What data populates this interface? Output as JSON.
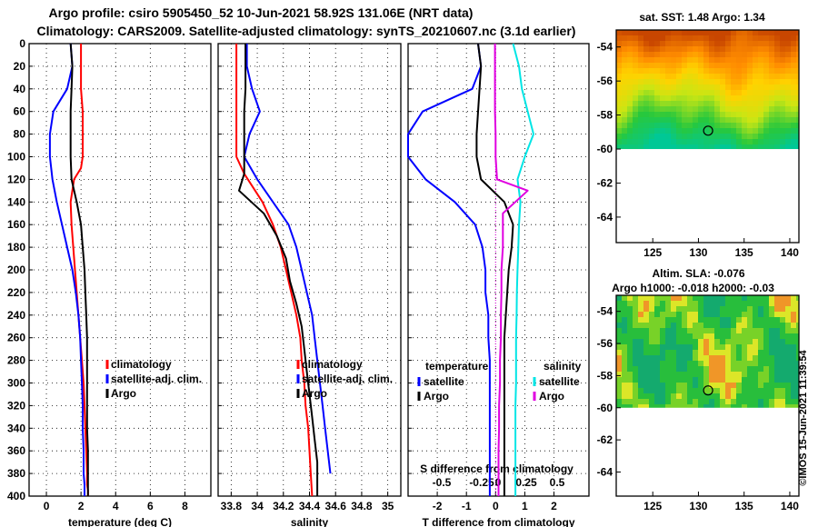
{
  "title_line1": "Argo profile: csiro 5905450_52 10-Jun-2021 58.92S 131.06E (NRT data)",
  "title_line2": "Climatology: CARS2009. Satellite-adjusted climatology: synTS_20210607.nc (3.1d earlier)",
  "credit": "©IMOS 15-Jun-2021 11:39:54",
  "colors": {
    "climatology": "#ff0000",
    "satellite": "#0000ff",
    "argo": "#000000",
    "sat_salinity": "#00e5e5",
    "argo_salinity": "#e000e0",
    "zero_line": "#e000e0"
  },
  "chart_data": [
    {
      "type": "line",
      "id": "temperature",
      "xlabel": "temperature (deg C)",
      "xlim": [
        -1,
        9.5
      ],
      "xticks": [
        0,
        2,
        4,
        6,
        8
      ],
      "xtick_labels": [
        "0",
        "2",
        "4",
        "6",
        "8"
      ],
      "ylim": [
        0,
        400
      ],
      "yticks": [
        0,
        20,
        40,
        60,
        80,
        100,
        120,
        140,
        160,
        180,
        200,
        220,
        240,
        260,
        280,
        300,
        320,
        340,
        360,
        380,
        400
      ],
      "ytick_labels": [
        "0",
        "20",
        "40",
        "60",
        "80",
        "100",
        "120",
        "140",
        "160",
        "180",
        "200",
        "220",
        "240",
        "260",
        "280",
        "300",
        "320",
        "340",
        "360",
        "380",
        "400"
      ],
      "legend": [
        "climatology",
        "satellite-adj. clim.",
        "Argo"
      ],
      "series": [
        {
          "name": "climatology",
          "color": "#ff0000",
          "x": [
            2.0,
            2.0,
            2.0,
            2.1,
            2.1,
            2.1,
            2.0,
            1.6,
            1.4,
            1.45,
            1.55,
            1.65,
            1.75,
            1.85,
            1.95,
            2.05,
            2.15,
            2.2,
            2.25,
            2.3,
            2.35,
            2.35,
            2.4,
            2.4
          ],
          "y": [
            0,
            20,
            40,
            60,
            80,
            100,
            110,
            120,
            140,
            160,
            180,
            200,
            220,
            240,
            260,
            280,
            300,
            320,
            340,
            360,
            380,
            390,
            395,
            400
          ]
        },
        {
          "name": "satellite-adj. clim.",
          "color": "#0000ff",
          "x": [
            1.4,
            1.5,
            1.2,
            0.4,
            0.2,
            0.2,
            0.35,
            0.6,
            0.9,
            1.2,
            1.5,
            1.7,
            1.85,
            1.95,
            2.0,
            2.05,
            2.1,
            2.1,
            2.15,
            2.15,
            2.2,
            2.2
          ],
          "y": [
            0,
            20,
            40,
            60,
            80,
            100,
            120,
            140,
            160,
            180,
            200,
            220,
            240,
            260,
            280,
            300,
            320,
            340,
            360,
            380,
            390,
            400
          ]
        },
        {
          "name": "Argo",
          "color": "#000000",
          "x": [
            1.4,
            1.5,
            1.45,
            1.4,
            1.4,
            1.4,
            1.45,
            1.75,
            2.0,
            2.1,
            2.2,
            2.25,
            2.3,
            2.35,
            2.35,
            2.35,
            2.35,
            2.35,
            2.4,
            2.4,
            2.4,
            2.4
          ],
          "y": [
            0,
            20,
            40,
            60,
            80,
            100,
            120,
            140,
            160,
            180,
            200,
            220,
            240,
            260,
            280,
            300,
            320,
            340,
            360,
            380,
            390,
            400
          ]
        }
      ]
    },
    {
      "type": "line",
      "id": "salinity",
      "xlabel": "salinity",
      "xlim": [
        33.7,
        35.1
      ],
      "xticks": [
        33.8,
        34,
        34.2,
        34.4,
        34.6,
        34.8,
        35
      ],
      "xtick_labels": [
        "33.8",
        "34",
        "34.2",
        "34.4",
        "34.6",
        "34.8",
        "35"
      ],
      "ylim": [
        0,
        400
      ],
      "legend": [
        "climatology",
        "satellite-adj. clim.",
        "Argo"
      ],
      "series": [
        {
          "name": "climatology",
          "color": "#ff0000",
          "x": [
            33.84,
            33.84,
            33.84,
            33.84,
            33.84,
            33.84,
            33.9,
            34.04,
            34.12,
            34.18,
            34.22,
            34.26,
            34.3,
            34.33,
            34.34,
            34.36,
            34.37,
            34.39,
            34.4,
            34.41,
            34.42
          ],
          "y": [
            0,
            20,
            40,
            60,
            80,
            100,
            115,
            140,
            160,
            180,
            200,
            220,
            240,
            260,
            280,
            300,
            320,
            340,
            360,
            380,
            400
          ]
        },
        {
          "name": "satellite-adj. clim.",
          "color": "#0000ff",
          "x": [
            33.92,
            33.92,
            33.96,
            34.02,
            33.94,
            33.9,
            34.0,
            34.12,
            34.24,
            34.3,
            34.34,
            34.38,
            34.42,
            34.44,
            34.46,
            34.48,
            34.5,
            34.52,
            34.54,
            34.56
          ],
          "y": [
            0,
            20,
            40,
            60,
            80,
            100,
            120,
            140,
            160,
            180,
            200,
            220,
            240,
            260,
            280,
            300,
            320,
            340,
            360,
            380
          ]
        },
        {
          "name": "Argo",
          "color": "#000000",
          "x": [
            33.91,
            33.91,
            33.91,
            33.9,
            33.9,
            33.9,
            33.9,
            33.86,
            34.05,
            34.15,
            34.22,
            34.25,
            34.3,
            34.34,
            34.36,
            34.38,
            34.4,
            34.42,
            34.44,
            34.46,
            34.46
          ],
          "y": [
            0,
            20,
            40,
            60,
            80,
            100,
            115,
            130,
            150,
            170,
            190,
            210,
            230,
            250,
            270,
            290,
            310,
            330,
            350,
            370,
            400
          ]
        }
      ]
    },
    {
      "type": "line",
      "id": "difference",
      "xlabel": "T difference from climatology",
      "top_label": "S difference from climatology",
      "xlim": [
        -3,
        3.2
      ],
      "xticks": [
        -2,
        -1,
        0,
        1,
        2
      ],
      "xtick_labels": [
        "-2",
        "-1",
        "0",
        "1",
        "2"
      ],
      "s_ticks": [
        -0.5,
        -0.25,
        0,
        0.25,
        0.5
      ],
      "s_tick_labels": [
        "-0.5",
        "-0.25",
        "0",
        "0.25",
        "0.5"
      ],
      "ylim": [
        0,
        400
      ],
      "legend_left_title": "temperature",
      "legend_right_title": "salinity",
      "legend_left": [
        "satellite",
        "Argo"
      ],
      "legend_right": [
        "satellite",
        "Argo"
      ],
      "series": [
        {
          "name": "temperature satellite",
          "color": "#0000ff",
          "x": [
            -0.6,
            -0.5,
            -0.8,
            -2.5,
            -3.0,
            -3.0,
            -2.4,
            -1.4,
            -0.7,
            -0.45,
            -0.35,
            -0.35,
            -0.25,
            -0.25,
            -0.2,
            -0.2,
            -0.2,
            -0.2,
            -0.2,
            -0.2
          ],
          "y": [
            0,
            20,
            40,
            60,
            80,
            100,
            120,
            140,
            160,
            180,
            200,
            220,
            240,
            260,
            280,
            300,
            320,
            340,
            360,
            400
          ]
        },
        {
          "name": "temperature Argo",
          "color": "#000000",
          "x": [
            -0.6,
            -0.5,
            -0.55,
            -0.6,
            -0.65,
            -0.65,
            -0.5,
            0.3,
            0.6,
            0.55,
            0.45,
            0.4,
            0.35,
            0.3,
            0.3,
            0.3,
            0.3,
            0.3,
            0.3,
            0.3
          ],
          "y": [
            0,
            20,
            40,
            60,
            80,
            100,
            120,
            140,
            160,
            180,
            200,
            220,
            240,
            260,
            280,
            300,
            320,
            340,
            360,
            400
          ]
        },
        {
          "name": "salinity satellite",
          "color": "#00e5e5",
          "x": [
            0.6,
            0.8,
            0.9,
            1.1,
            1.3,
            1.0,
            0.75,
            0.85,
            0.8,
            0.78,
            0.75,
            0.73,
            0.72,
            0.7,
            0.7,
            0.7,
            0.68,
            0.68,
            0.68,
            0.68
          ],
          "y": [
            0,
            20,
            40,
            60,
            80,
            100,
            120,
            140,
            160,
            180,
            200,
            220,
            240,
            260,
            280,
            300,
            320,
            340,
            360,
            400
          ]
        },
        {
          "name": "salinity Argo",
          "color": "#e000e0",
          "x": [
            -0.02,
            -0.02,
            -0.02,
            -0.02,
            0.0,
            0.0,
            0.05,
            1.1,
            0.25,
            0.25,
            0.2,
            0.2,
            0.18,
            0.18,
            0.15,
            0.15,
            0.12,
            0.12,
            0.1,
            0.1
          ],
          "y": [
            0,
            20,
            40,
            60,
            80,
            100,
            120,
            130,
            150,
            180,
            200,
            220,
            240,
            260,
            280,
            300,
            320,
            340,
            360,
            400
          ]
        }
      ]
    },
    {
      "type": "heatmap",
      "id": "sst_map",
      "title": "sat. SST: 1.48 Argo: 1.34",
      "xlim": [
        121,
        141
      ],
      "ylim": [
        -65.5,
        -53.0
      ],
      "xticks": [
        125,
        130,
        135,
        140
      ],
      "xtick_labels": [
        "125",
        "130",
        "135",
        "140"
      ],
      "yticks": [
        -54,
        -56,
        -58,
        -60,
        -62,
        -64
      ],
      "ytick_labels": [
        "-54",
        "-56",
        "-58",
        "-60",
        "-62",
        "-64"
      ],
      "data_lat_min": -60.0,
      "marker": {
        "lon": 131.06,
        "lat": -58.92
      }
    },
    {
      "type": "heatmap",
      "id": "sla_map",
      "title": "Altim. SLA: -0.076",
      "subtitle": "Argo h1000: -0.018 h2000: -0.03",
      "xlim": [
        121,
        141
      ],
      "ylim": [
        -65.5,
        -53.0
      ],
      "xticks": [
        125,
        130,
        135,
        140
      ],
      "xtick_labels": [
        "125",
        "130",
        "135",
        "140"
      ],
      "yticks": [
        -54,
        -56,
        -58,
        -60,
        -62,
        -64
      ],
      "ytick_labels": [
        "-54",
        "-56",
        "-58",
        "-60",
        "-62",
        "-64"
      ],
      "data_lat_min": -60.0,
      "marker": {
        "lon": 131.06,
        "lat": -58.92
      }
    }
  ]
}
